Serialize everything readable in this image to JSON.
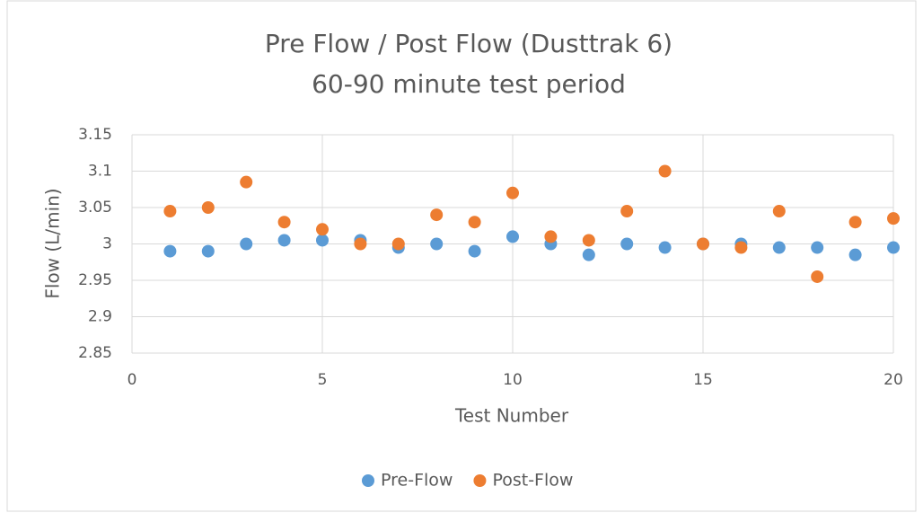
{
  "chart_data": {
    "type": "scatter",
    "title": "Pre Flow / Post Flow (Dusttrak 6)",
    "subtitle": "60-90 minute test period",
    "x_label": "Test Number",
    "y_label": "Flow (L/min)",
    "xlim": [
      0,
      20
    ],
    "xticks": [
      0,
      5,
      10,
      15,
      20
    ],
    "ylim": [
      2.85,
      3.15
    ],
    "yticks": [
      2.85,
      2.9,
      2.95,
      3,
      3.05,
      3.1,
      3.15
    ],
    "grid": true,
    "legend": "bottom",
    "series": [
      {
        "name": "Pre-Flow",
        "color": "#5b9bd5",
        "x": [
          1,
          2,
          3,
          4,
          5,
          6,
          7,
          8,
          9,
          10,
          11,
          12,
          13,
          14,
          15,
          16,
          17,
          18,
          19,
          20
        ],
        "values": [
          2.99,
          2.99,
          3.0,
          3.005,
          3.005,
          3.005,
          2.995,
          3.0,
          2.99,
          3.01,
          3.0,
          2.985,
          3.0,
          2.995,
          3.0,
          3.0,
          2.995,
          2.995,
          2.985,
          2.995
        ]
      },
      {
        "name": "Post-Flow",
        "color": "#ed7d31",
        "x": [
          1,
          2,
          3,
          4,
          5,
          6,
          7,
          8,
          9,
          10,
          11,
          12,
          13,
          14,
          15,
          16,
          17,
          18,
          19,
          20
        ],
        "values": [
          3.045,
          3.05,
          3.085,
          3.03,
          3.02,
          3.0,
          3.0,
          3.04,
          3.03,
          3.07,
          3.01,
          3.005,
          3.045,
          3.1,
          3.0,
          2.995,
          3.045,
          2.955,
          3.03,
          3.035
        ]
      }
    ]
  }
}
